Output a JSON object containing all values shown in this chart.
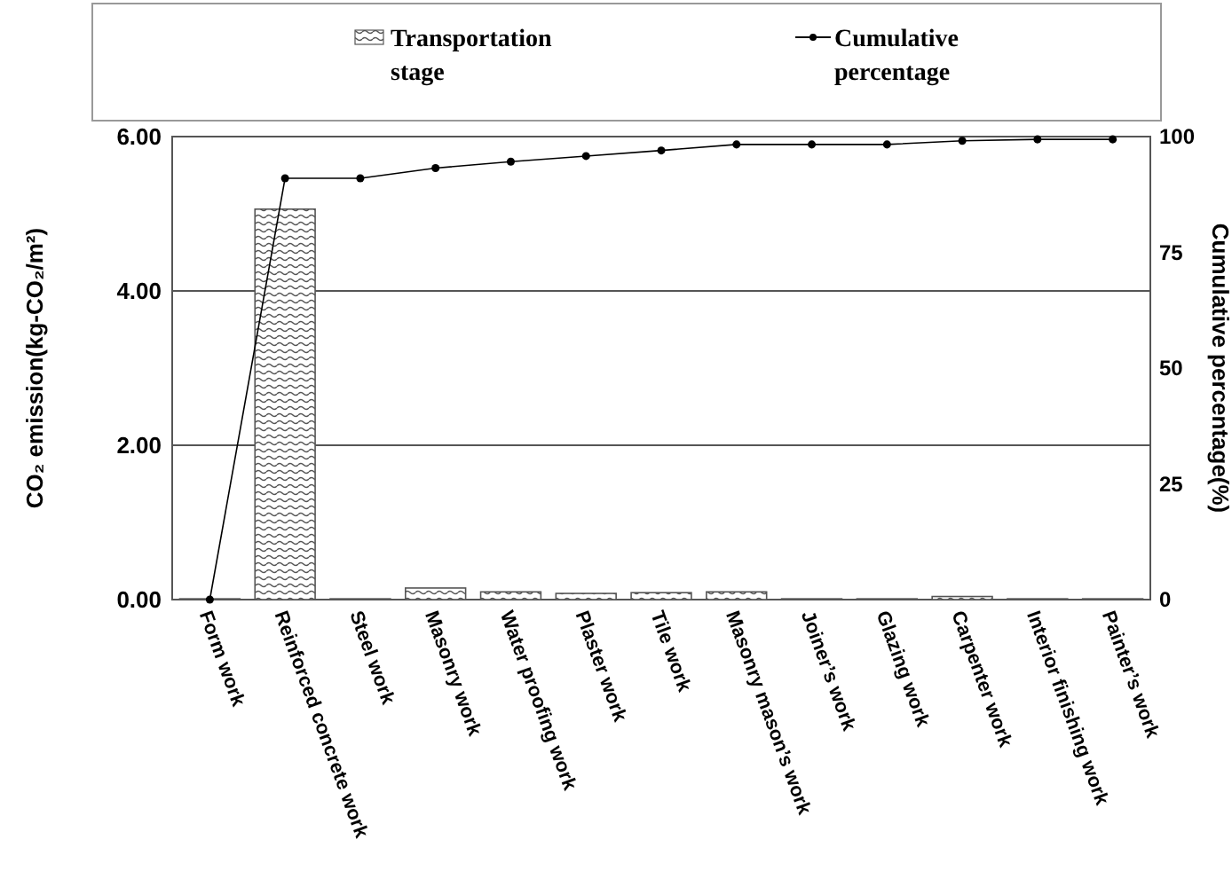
{
  "chart_data": {
    "type": "bar",
    "categories": [
      "Form work",
      "Reinforced concrete work",
      "Steel work",
      "Masonry work",
      "Water proofing work",
      "Plaster work",
      "Tile work",
      "Masonry mason’s work",
      "Joiner’s work",
      "Glazing work",
      "Carpenter work",
      "Interior finishing work",
      "Painter’s work"
    ],
    "series": [
      {
        "name": "Transportation stage",
        "color": "#555555",
        "values": [
          0.01,
          5.06,
          0.01,
          0.15,
          0.1,
          0.08,
          0.09,
          0.1,
          0.01,
          0.01,
          0.04,
          0.01,
          0.01
        ]
      },
      {
        "name": "Cumulative percentage",
        "type": "line",
        "axis": "y2",
        "color": "#000000",
        "values": [
          0,
          91,
          91,
          93.2,
          94.6,
          95.8,
          97,
          98.3,
          98.3,
          98.3,
          99.1,
          99.4,
          99.4
        ]
      }
    ],
    "ylabel": "CO₂ emission(kg-CO₂/m²)",
    "y2label": "Cumulative percentage(%)",
    "ylim": [
      0,
      6
    ],
    "yticks": [
      {
        "value": 0,
        "label": "0.00"
      },
      {
        "value": 2,
        "label": "2.00"
      },
      {
        "value": 4,
        "label": "4.00"
      },
      {
        "value": 6,
        "label": "6.00"
      }
    ],
    "y2lim": [
      0,
      100
    ],
    "y2ticks": [
      0,
      25,
      50,
      75,
      100
    ],
    "grid": "y",
    "legend": "top",
    "marker": "circle",
    "line_style": "solid"
  }
}
